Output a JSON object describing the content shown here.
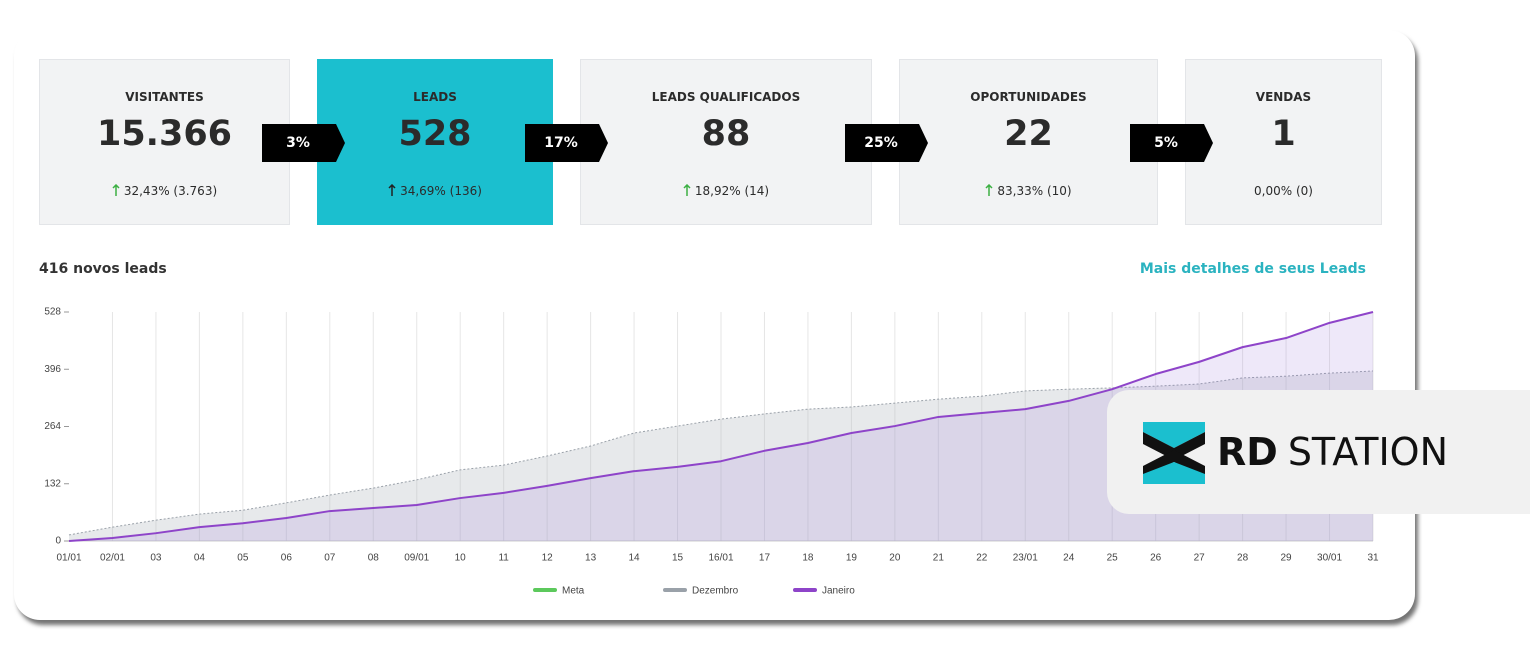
{
  "funnel": [
    {
      "label": "VISITANTES",
      "value": "15.366",
      "change": "32,43% (3.763)"
    },
    {
      "label": "LEADS",
      "value": "528",
      "change": "34,69% (136)"
    },
    {
      "label": "LEADS QUALIFICADOS",
      "value": "88",
      "change": "18,92% (14)"
    },
    {
      "label": "OPORTUNIDADES",
      "value": "22",
      "change": "83,33% (10)"
    },
    {
      "label": "VENDAS",
      "value": "1",
      "change": "0,00% (0)"
    }
  ],
  "conversions": [
    "3%",
    "17%",
    "25%",
    "5%"
  ],
  "summary": "416 novos leads",
  "link": "Mais detalhes de seus Leads",
  "logo": {
    "brand": "RD",
    "product": "STATION"
  },
  "chart_data": {
    "type": "line",
    "categories": [
      "01/01",
      "02/01",
      "03",
      "04",
      "05",
      "06",
      "07",
      "08",
      "09/01",
      "10",
      "11",
      "12",
      "13",
      "14",
      "15",
      "16/01",
      "17",
      "18",
      "19",
      "20",
      "21",
      "22",
      "23/01",
      "24",
      "25",
      "26",
      "27",
      "28",
      "29",
      "30/01",
      "31"
    ],
    "series": [
      {
        "name": "Meta",
        "color": "#5cc95c",
        "values": [
          null,
          null,
          null,
          null,
          null,
          null,
          null,
          null,
          null,
          null,
          null,
          null,
          null,
          null,
          null,
          null,
          null,
          null,
          null,
          null,
          null,
          null,
          null,
          null,
          null,
          null,
          null,
          null,
          null,
          null,
          null
        ]
      },
      {
        "name": "Dezembro",
        "color": "#9aa1a9",
        "values": [
          14,
          32,
          48,
          62,
          71,
          88,
          106,
          122,
          141,
          164,
          175,
          196,
          219,
          249,
          265,
          281,
          293,
          304,
          309,
          318,
          327,
          334,
          346,
          350,
          353,
          357,
          362,
          376,
          380,
          387,
          392
        ]
      },
      {
        "name": "Janeiro",
        "color": "#8e44c9",
        "values": [
          0,
          7,
          18,
          32,
          41,
          53,
          69,
          76,
          83,
          99,
          111,
          127,
          145,
          161,
          171,
          184,
          208,
          226,
          249,
          265,
          286,
          295,
          304,
          323,
          350,
          385,
          413,
          447,
          468,
          503,
          528
        ]
      }
    ],
    "ylim": [
      0,
      528
    ],
    "yticks": [
      0,
      132,
      264,
      396,
      528
    ],
    "grid": true
  }
}
